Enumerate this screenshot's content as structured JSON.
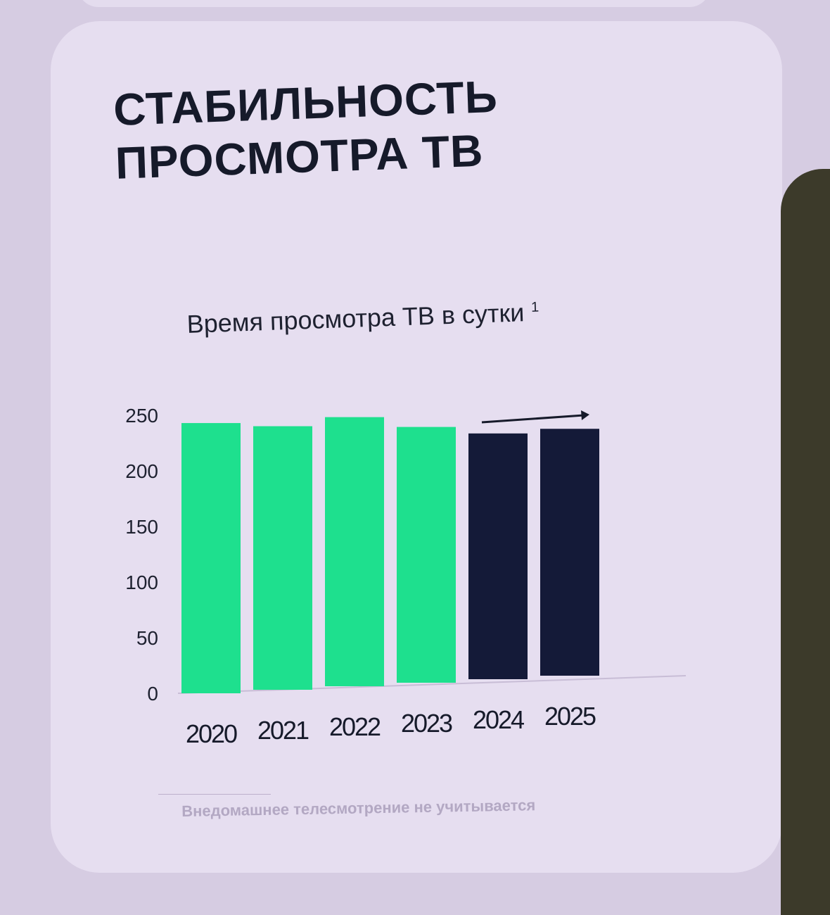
{
  "slide": {
    "title_line1": "СТАБИЛЬНОСТЬ",
    "title_line2": "ПРОСМОТРА ТВ",
    "footnote": "Внедомашнее телесмотрение не учитывается"
  },
  "chart_data": {
    "type": "bar",
    "title": "Время просмотра ТВ в сутки",
    "title_footnote_mark": "1",
    "categories": [
      "2020",
      "2021",
      "2022",
      "2023",
      "2024",
      "2025"
    ],
    "values": [
      243,
      237,
      242,
      230,
      221,
      222
    ],
    "ylim": [
      0,
      250
    ],
    "yticks": [
      0,
      50,
      100,
      150,
      200,
      250
    ],
    "grid": false,
    "legend": "none",
    "colors": [
      "#1ee08e",
      "#1ee08e",
      "#1ee08e",
      "#1ee08e",
      "#141a38",
      "#141a38"
    ],
    "annotation": "arrow-right above 2024–2025"
  }
}
